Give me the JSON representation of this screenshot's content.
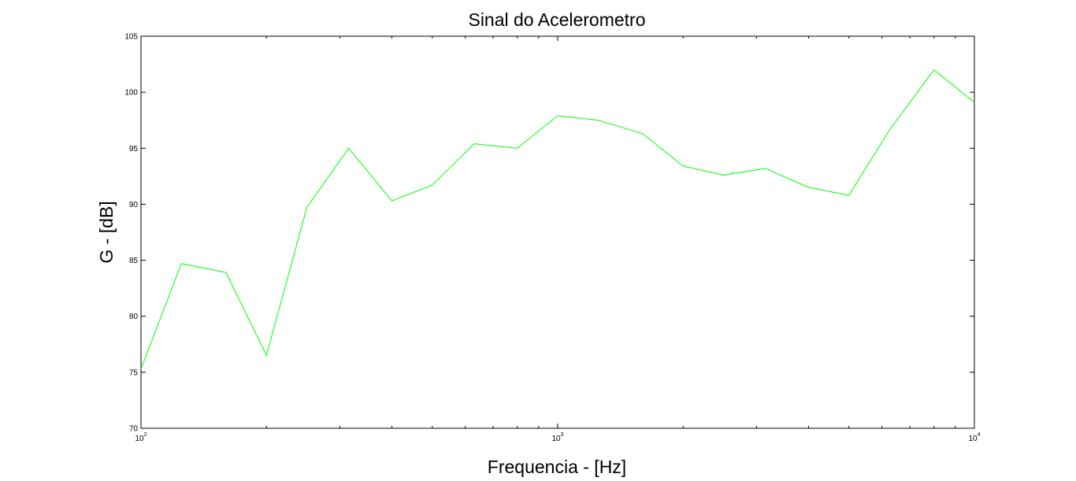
{
  "chart_data": {
    "type": "line",
    "title": "Sinal do Acelerometro",
    "xlabel": "Frequencia - [Hz]",
    "ylabel": "G - [dB]",
    "xscale": "log",
    "xlim": [
      100,
      10000
    ],
    "ylim": [
      70,
      105
    ],
    "yticks": [
      "70",
      "75",
      "80",
      "85",
      "90",
      "95",
      "100",
      "105"
    ],
    "xticks": [
      {
        "base": "10",
        "exp": "2"
      },
      {
        "base": "10",
        "exp": "3"
      },
      {
        "base": "10",
        "exp": "4"
      }
    ],
    "grid": false,
    "legend": "none",
    "series": [
      {
        "color": "#00ff00",
        "x": [
          100,
          125,
          160,
          200,
          250,
          315,
          400,
          500,
          630,
          800,
          1000,
          1250,
          1600,
          2000,
          2500,
          3150,
          4000,
          5000,
          6300,
          8000,
          10000
        ],
        "y": [
          75.3,
          84.7,
          83.9,
          76.5,
          89.7,
          95.0,
          90.3,
          91.7,
          95.4,
          95.0,
          97.9,
          97.5,
          96.3,
          93.4,
          92.6,
          93.2,
          91.5,
          90.8,
          96.8,
          102.0,
          99.1
        ]
      }
    ]
  }
}
